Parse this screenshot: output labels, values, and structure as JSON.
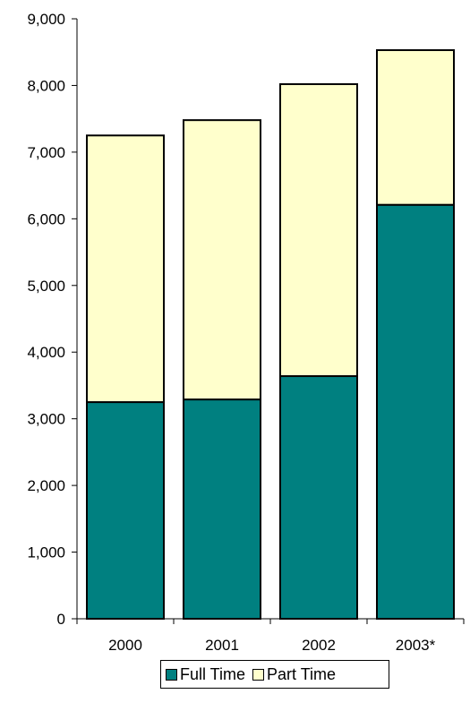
{
  "chart_data": {
    "type": "bar",
    "stacked": true,
    "categories": [
      "2000",
      "2001",
      "2002",
      "2003*"
    ],
    "series": [
      {
        "name": "Full Time",
        "values": [
          3250,
          3290,
          3640,
          6210
        ],
        "color": "#008080"
      },
      {
        "name": "Part Time",
        "values": [
          4000,
          4190,
          4380,
          2320
        ],
        "color": "#FFFFCC"
      }
    ],
    "ylim": [
      0,
      9000
    ],
    "yticks": [
      0,
      1000,
      2000,
      3000,
      4000,
      5000,
      6000,
      7000,
      8000,
      9000
    ],
    "ytick_labels": [
      "0",
      "1,000",
      "2,000",
      "3,000",
      "4,000",
      "5,000",
      "6,000",
      "7,000",
      "8,000",
      "9,000"
    ],
    "title": "",
    "xlabel": "",
    "ylabel": "",
    "grid": false,
    "legend_position": "bottom"
  }
}
